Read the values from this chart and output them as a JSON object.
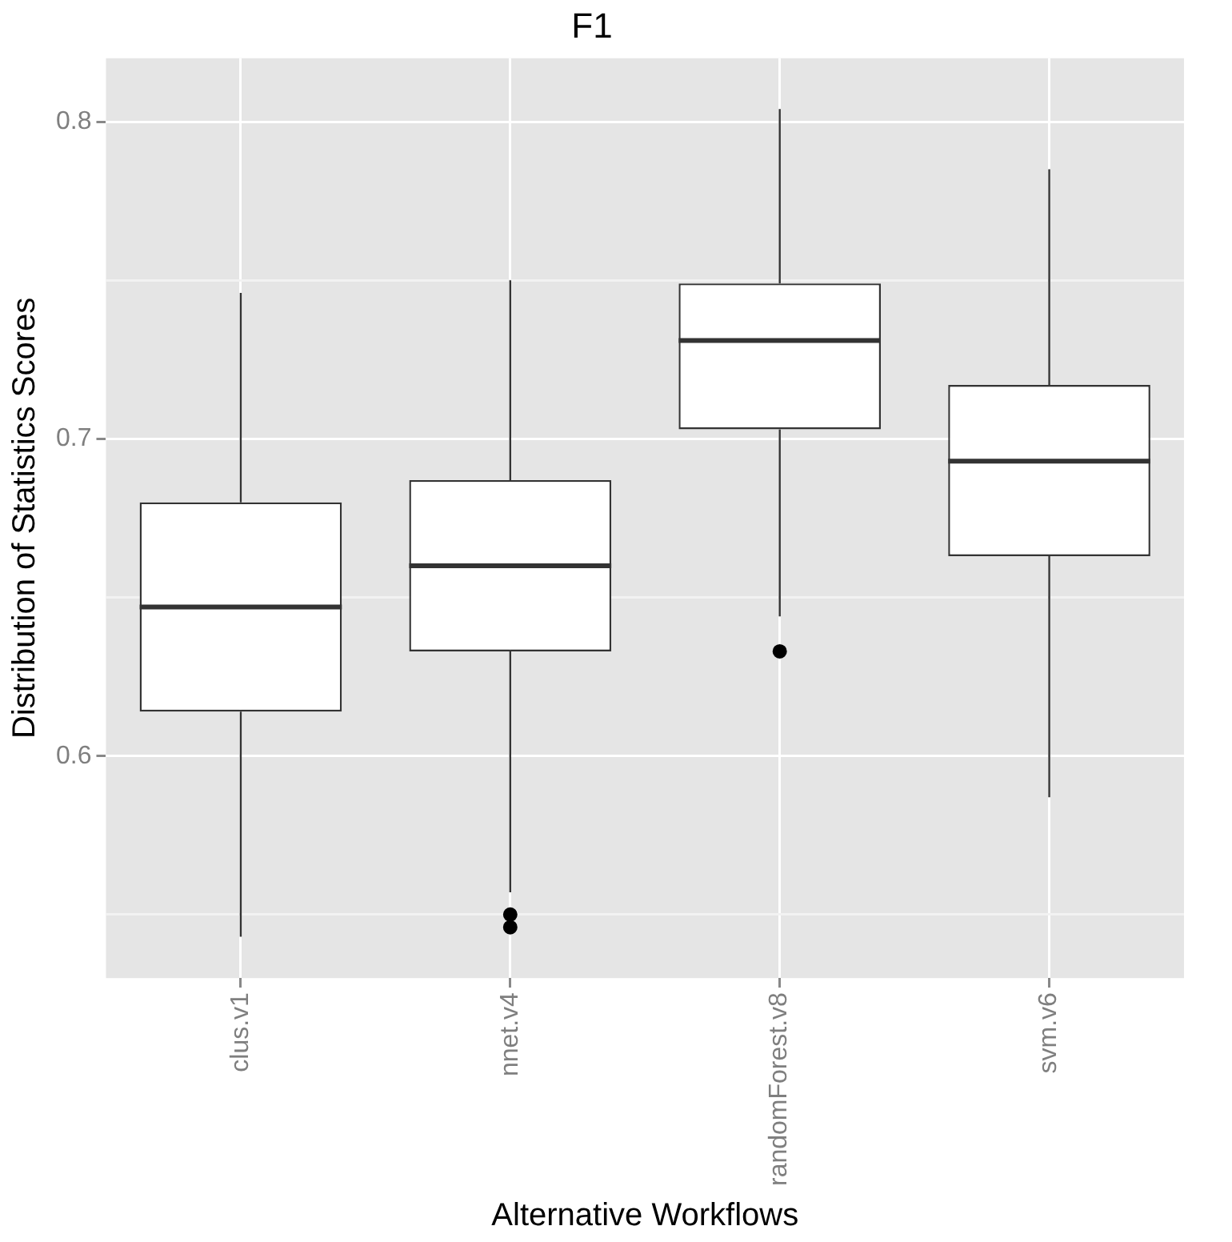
{
  "chart_data": {
    "type": "box",
    "title": "F1",
    "xlabel": "Alternative Workflows",
    "ylabel": "Distribution of Statistics Scores",
    "categories": [
      "clus.v1",
      "nnet.v4",
      "randomForest.v8",
      "svm.v6"
    ],
    "boxes": [
      {
        "low": 0.543,
        "q1": 0.614,
        "median": 0.647,
        "q3": 0.68,
        "high": 0.746
      },
      {
        "low": 0.557,
        "q1": 0.633,
        "median": 0.66,
        "q3": 0.687,
        "high": 0.75,
        "outliers": [
          0.55,
          0.546
        ]
      },
      {
        "low": 0.644,
        "q1": 0.703,
        "median": 0.731,
        "q3": 0.749,
        "high": 0.804,
        "outliers": [
          0.633
        ]
      },
      {
        "low": 0.587,
        "q1": 0.663,
        "median": 0.693,
        "q3": 0.717,
        "high": 0.785
      }
    ],
    "ylim": [
      0.53,
      0.82
    ],
    "yticks": [
      {
        "value": 0.55,
        "label": null
      },
      0.6,
      {
        "value": 0.65,
        "label": null
      },
      0.7,
      {
        "value": 0.75,
        "label": null
      },
      0.8
    ],
    "grid": true
  }
}
